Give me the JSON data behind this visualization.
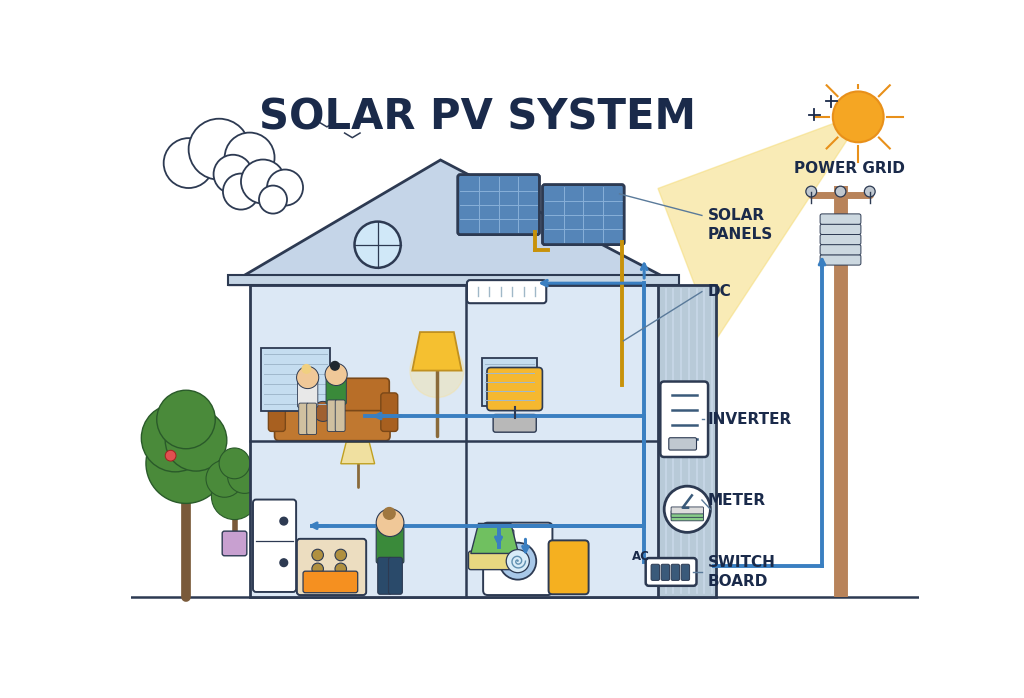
{
  "title": "SOLAR PV SYSTEM",
  "title_fontsize": 30,
  "title_fontweight": "bold",
  "bg_color": "#ffffff",
  "house_fill": "#dce8f5",
  "house_stroke": "#2d3a52",
  "roof_fill": "#c5d5e8",
  "wall_right_fill": "#b0c5d8",
  "solar_panel_fill": "#4a7ab5",
  "sun_color": "#f5a623",
  "blue_wire": "#3a7fc1",
  "yellow_wire": "#c8920a",
  "tree_green": "#4a8a3a",
  "pole_color": "#b8835a",
  "label_color": "#1a2a4a",
  "line_col": "#5a7a9a",
  "labels": {
    "solar_panels": "SOLAR\nPANELS",
    "dc": "DC",
    "inverter": "INVERTER",
    "meter": "METER",
    "ac": "AC",
    "switchboard": "SWITCH\nBOARD",
    "power_grid": "POWER GRID"
  }
}
